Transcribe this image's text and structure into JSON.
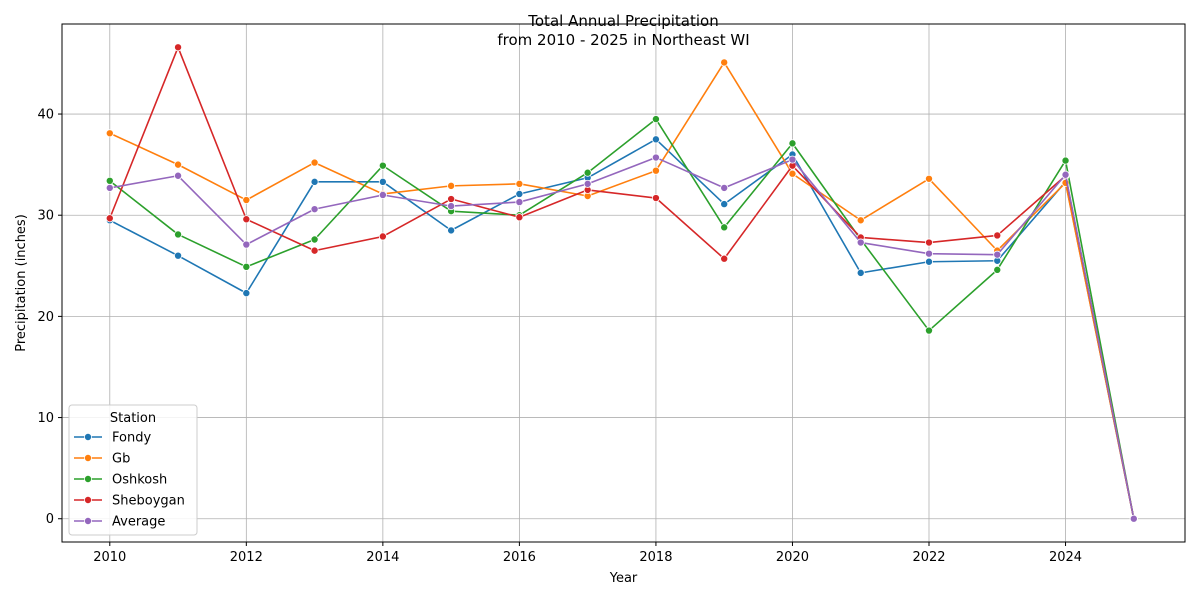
{
  "chart_data": {
    "type": "line",
    "title": "Total Annual Precipitation",
    "subtitle": "from 2010 - 2025  in Northeast WI",
    "xlabel": "Year",
    "ylabel": "Precipitation (inches)",
    "xlim": [
      2009.3,
      2025.75
    ],
    "ylim": [
      -2.3,
      48.9
    ],
    "grid": true,
    "x_ticks": [
      2010,
      2012,
      2014,
      2016,
      2018,
      2020,
      2022,
      2024
    ],
    "y_ticks": [
      0,
      10,
      20,
      30,
      40
    ],
    "legend": {
      "title": "Station",
      "position": "lower-left"
    },
    "x": [
      2010,
      2011,
      2012,
      2013,
      2014,
      2015,
      2016,
      2017,
      2018,
      2019,
      2020,
      2021,
      2022,
      2023,
      2024,
      2025
    ],
    "series": [
      {
        "name": "Fondy",
        "color": "#1f77b4",
        "values": [
          29.5,
          26.0,
          22.3,
          33.3,
          33.3,
          28.5,
          32.1,
          33.7,
          37.5,
          31.1,
          36.0,
          24.3,
          25.4,
          25.5,
          33.3,
          0
        ]
      },
      {
        "name": "Gb",
        "color": "#ff7f0e",
        "values": [
          38.1,
          35.0,
          31.5,
          35.2,
          32.1,
          32.9,
          33.1,
          31.9,
          34.4,
          45.1,
          34.1,
          29.5,
          33.6,
          26.5,
          33.2,
          0
        ]
      },
      {
        "name": "Oshkosh",
        "color": "#2ca02c",
        "values": [
          33.4,
          28.1,
          24.9,
          27.6,
          34.9,
          30.4,
          30.0,
          34.2,
          39.5,
          28.8,
          37.1,
          27.6,
          18.6,
          24.6,
          35.4,
          0
        ]
      },
      {
        "name": "Sheboygan",
        "color": "#d62728",
        "values": [
          29.7,
          46.6,
          29.6,
          26.5,
          27.9,
          31.6,
          29.8,
          32.5,
          31.7,
          25.7,
          34.9,
          27.8,
          27.3,
          28.0,
          33.9,
          0
        ]
      },
      {
        "name": "Average",
        "color": "#9467bd",
        "values": [
          32.7,
          33.9,
          27.1,
          30.6,
          32.0,
          30.9,
          31.3,
          33.1,
          35.7,
          32.7,
          35.5,
          27.3,
          26.2,
          26.1,
          34.0,
          0
        ]
      }
    ]
  }
}
